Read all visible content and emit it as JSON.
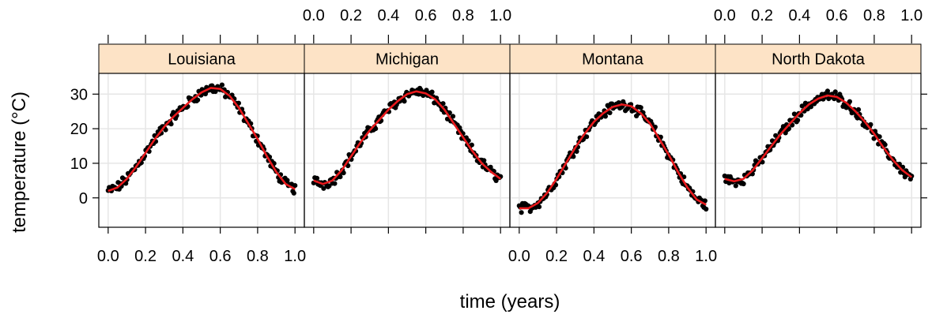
{
  "chart_data": {
    "type": "scatter",
    "xlabel": "time (years)",
    "ylabel": "temperature (°C)",
    "xlim": [
      -0.05,
      1.05
    ],
    "ylim": [
      -8.5,
      36
    ],
    "x_ticks": [
      0.0,
      0.2,
      0.4,
      0.6,
      0.8,
      1.0
    ],
    "x_tick_labels": [
      "0.0",
      "0.2",
      "0.4",
      "0.6",
      "0.8",
      "1.0"
    ],
    "y_ticks": [
      0,
      10,
      20,
      30
    ],
    "y_tick_labels": [
      "0",
      "10",
      "20",
      "30"
    ],
    "grid": true,
    "colors": {
      "points": "#000000",
      "fit": "#e8191c",
      "strip": "#fde3c6",
      "grid": "#e6e6e6"
    },
    "x_samples": [
      0.0,
      0.05,
      0.1,
      0.15,
      0.2,
      0.25,
      0.3,
      0.35,
      0.4,
      0.45,
      0.5,
      0.55,
      0.6,
      0.65,
      0.7,
      0.75,
      0.8,
      0.85,
      0.9,
      0.95,
      1.0
    ],
    "panels": [
      {
        "name": "Louisiana",
        "fit": [
          2.0,
          3.0,
          5.5,
          9.0,
          13.0,
          17.0,
          20.5,
          23.5,
          26.0,
          28.5,
          30.5,
          31.8,
          31.5,
          29.5,
          26.0,
          21.5,
          17.0,
          12.0,
          7.5,
          4.0,
          2.5
        ]
      },
      {
        "name": "Michigan",
        "fit": [
          5.0,
          4.0,
          5.0,
          8.0,
          12.0,
          16.0,
          19.5,
          22.5,
          25.5,
          28.0,
          30.0,
          30.8,
          30.2,
          28.5,
          25.5,
          21.5,
          17.5,
          13.5,
          10.0,
          7.5,
          5.5
        ]
      },
      {
        "name": "Montana",
        "fit": [
          -3.0,
          -3.0,
          -1.5,
          1.5,
          5.5,
          10.0,
          14.5,
          18.5,
          22.0,
          24.5,
          26.3,
          27.0,
          26.5,
          24.5,
          21.5,
          17.0,
          12.5,
          7.5,
          3.0,
          -0.5,
          -2.0
        ]
      },
      {
        "name": "North Dakota",
        "fit": [
          5.5,
          4.8,
          5.5,
          8.0,
          11.5,
          15.0,
          18.5,
          21.5,
          24.5,
          27.0,
          28.7,
          29.6,
          29.2,
          27.5,
          25.0,
          22.0,
          18.5,
          14.5,
          11.0,
          8.0,
          6.0
        ]
      }
    ]
  }
}
